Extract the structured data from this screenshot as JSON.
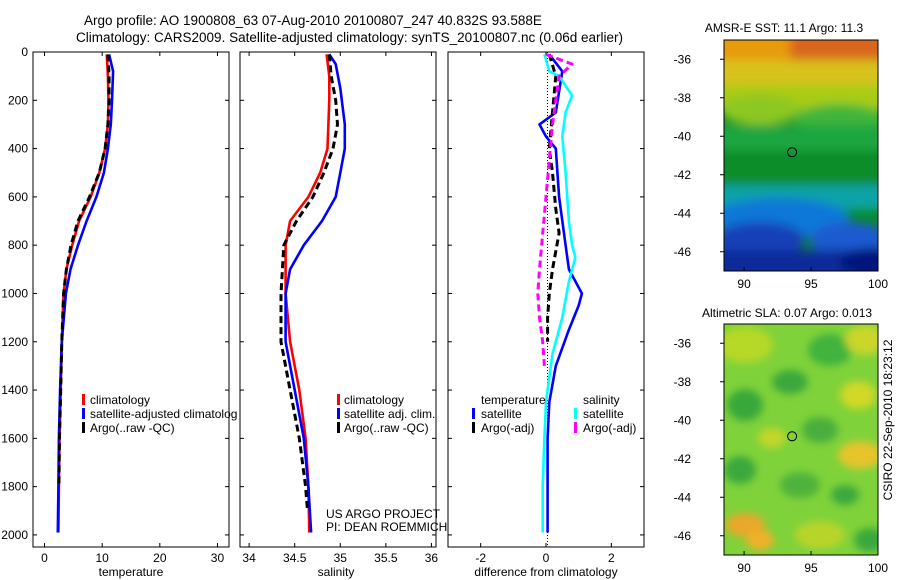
{
  "header": {
    "line1": "Argo profile: AO 1900808_63 07-Aug-2010 20100807_247 40.832S 93.588E",
    "line2": "Climatology: CARS2009. Satellite-adjusted climatology: synTS_20100807.nc (0.06d earlier)"
  },
  "colors": {
    "climatology": "#ff0000",
    "satellite": "#0000ff",
    "argo": "#000000",
    "cyan": "#00ffff",
    "magenta": "#ff00ff"
  },
  "chart_data": [
    {
      "type": "line",
      "xlabel": "temperature",
      "ylabel": "",
      "xlim": [
        -2,
        32
      ],
      "ylim": [
        2050,
        0
      ],
      "xticks": [
        0,
        10,
        20,
        30
      ],
      "yticks": [
        0,
        200,
        400,
        600,
        800,
        1000,
        1200,
        1400,
        1600,
        1800,
        2000
      ],
      "legend": [
        "climatology",
        "satellite-adjusted climatolog",
        "Argo(..raw -QC)"
      ],
      "legend_position": "lower-right",
      "series": [
        {
          "name": "climatology",
          "style": "solid",
          "color": "#ff0000",
          "x": [
            10.8,
            11.0,
            11.1,
            11.0,
            10.5,
            9.5,
            8.0,
            6.0,
            4.8,
            3.8,
            3.3,
            3.0,
            2.8,
            2.6,
            2.5,
            2.4
          ],
          "y": [
            10,
            100,
            200,
            300,
            400,
            500,
            600,
            700,
            800,
            900,
            1000,
            1200,
            1400,
            1600,
            1800,
            1990
          ]
        },
        {
          "name": "satellite-adjusted climatolog",
          "style": "solid",
          "color": "#0000ff",
          "x": [
            11.2,
            11.9,
            11.7,
            11.5,
            11.0,
            10.3,
            9.0,
            7.3,
            5.8,
            4.5,
            3.7,
            3.0,
            2.7,
            2.5,
            2.4,
            2.3
          ],
          "y": [
            10,
            80,
            200,
            300,
            400,
            500,
            600,
            700,
            800,
            900,
            1000,
            1200,
            1400,
            1600,
            1800,
            1990
          ]
        },
        {
          "name": "Argo(..raw -QC)",
          "style": "dash",
          "color": "#000000",
          "x": [
            11.0,
            11.2,
            11.2,
            11.0,
            10.5,
            9.5,
            7.8,
            5.8,
            4.6,
            3.8,
            3.3,
            3.0,
            2.8,
            2.6,
            2.5
          ],
          "y": [
            10,
            100,
            200,
            300,
            400,
            500,
            600,
            700,
            800,
            900,
            1000,
            1200,
            1400,
            1600,
            1800
          ]
        }
      ]
    },
    {
      "type": "line",
      "xlabel": "salinity",
      "ylabel": "",
      "xlim": [
        33.9,
        36.05
      ],
      "ylim": [
        2050,
        0
      ],
      "xticks": [
        34,
        34.5,
        35,
        35.5,
        36
      ],
      "yticks": [
        0,
        200,
        400,
        600,
        800,
        1000,
        1200,
        1400,
        1600,
        1800,
        2000
      ],
      "legend": [
        "climatology",
        "satellite adj. clim.",
        "Argo(..raw -QC)"
      ],
      "legend_position": "lower-right",
      "annotation": [
        "US ARGO PROJECT",
        "PI: DEAN ROEMMICH"
      ],
      "series": [
        {
          "name": "climatology",
          "style": "solid",
          "color": "#ff0000",
          "x": [
            34.85,
            34.88,
            34.88,
            34.87,
            34.86,
            34.78,
            34.65,
            34.45,
            34.4,
            34.4,
            34.45,
            34.55,
            34.62,
            34.65,
            34.66
          ],
          "y": [
            10,
            100,
            200,
            300,
            400,
            500,
            600,
            700,
            800,
            1000,
            1200,
            1400,
            1600,
            1800,
            1990
          ]
        },
        {
          "name": "satellite adj. clim.",
          "style": "solid",
          "color": "#0000ff",
          "x": [
            34.88,
            34.95,
            35.0,
            35.05,
            35.05,
            35.0,
            34.95,
            34.8,
            34.6,
            34.45,
            34.4,
            34.4,
            34.5,
            34.6,
            34.65,
            34.68
          ],
          "y": [
            10,
            50,
            150,
            300,
            400,
            500,
            600,
            700,
            800,
            900,
            1000,
            1200,
            1400,
            1600,
            1800,
            1990
          ]
        },
        {
          "name": "Argo(..raw -QC)",
          "style": "dash",
          "color": "#000000",
          "x": [
            34.88,
            34.9,
            34.95,
            34.97,
            34.92,
            34.82,
            34.7,
            34.52,
            34.38,
            34.35,
            34.35,
            34.45,
            34.55,
            34.62,
            34.64
          ],
          "y": [
            10,
            100,
            200,
            300,
            400,
            500,
            600,
            700,
            800,
            1000,
            1200,
            1400,
            1600,
            1800,
            1900
          ]
        }
      ]
    },
    {
      "type": "line",
      "xlabel": "difference from climatology",
      "ylabel": "",
      "xlim": [
        -3.0,
        3.0
      ],
      "ylim": [
        2050,
        0
      ],
      "xticks": [
        -2,
        0,
        2
      ],
      "yticks": [
        0,
        200,
        400,
        600,
        800,
        1000,
        1200,
        1400,
        1600,
        1800,
        2000
      ],
      "legend_groups": [
        {
          "title": "temperature",
          "items": [
            "satellite",
            "Argo(-adj)"
          ]
        },
        {
          "title": "salinity",
          "items": [
            "satellite",
            "Argo(-adj)"
          ]
        }
      ],
      "series": [
        {
          "name": "satellite",
          "group": "temperature",
          "style": "solid",
          "color": "#0000ff",
          "x": [
            0.1,
            0.5,
            0.3,
            -0.2,
            0.0,
            0.3,
            0.4,
            0.6,
            0.7,
            0.9,
            1.1,
            1.0,
            0.7,
            0.3,
            0.1,
            0.05,
            0.05,
            0.05
          ],
          "y": [
            10,
            80,
            250,
            300,
            350,
            400,
            600,
            800,
            900,
            950,
            1000,
            1050,
            1150,
            1300,
            1450,
            1600,
            1800,
            1990
          ]
        },
        {
          "name": "Argo(-adj)",
          "group": "temperature",
          "style": "dash",
          "color": "#000000",
          "x": [
            0.1,
            0.3,
            0.2,
            0.1,
            0.2,
            0.3,
            0.4,
            0.2,
            0.1,
            0.05,
            0.05
          ],
          "y": [
            10,
            100,
            250,
            400,
            500,
            650,
            750,
            900,
            1000,
            1100,
            1200
          ]
        },
        {
          "name": "satellite",
          "group": "salinity",
          "style": "solid",
          "color": "#00ffff",
          "x": [
            -0.05,
            0.1,
            0.4,
            0.8,
            0.6,
            0.5,
            0.6,
            0.7,
            0.8,
            0.9,
            0.7,
            0.5,
            0.2,
            0.0,
            -0.05,
            -0.1,
            -0.1
          ],
          "y": [
            10,
            80,
            100,
            180,
            250,
            350,
            500,
            700,
            800,
            850,
            950,
            1100,
            1250,
            1450,
            1600,
            1800,
            1990
          ]
        },
        {
          "name": "Argo(-adj)",
          "group": "salinity",
          "style": "dash",
          "color": "#ff00ff",
          "x": [
            0.0,
            0.8,
            0.4,
            0.2,
            0.0,
            -0.2,
            -0.25,
            -0.2,
            -0.1,
            -0.05
          ],
          "y": [
            10,
            50,
            100,
            300,
            600,
            900,
            1000,
            1100,
            1200,
            1300
          ]
        }
      ]
    },
    {
      "type": "heatmap",
      "title": "AMSR-E SST: 11.1 Argo: 11.3",
      "xlim": [
        88.5,
        100
      ],
      "ylim": [
        -47,
        -35
      ],
      "xticks": [
        90,
        95,
        100
      ],
      "yticks": [
        -36,
        -38,
        -40,
        -42,
        -44,
        -46
      ],
      "marker": {
        "lon": 93.588,
        "lat": -40.832
      },
      "colormap": "jet"
    },
    {
      "type": "heatmap",
      "title": "Altimetric SLA: 0.07 Argo: 0.013",
      "xlim": [
        88.5,
        100
      ],
      "ylim": [
        -47,
        -35
      ],
      "xticks": [
        90,
        95,
        100
      ],
      "yticks": [
        -36,
        -38,
        -40,
        -42,
        -44,
        -46
      ],
      "marker": {
        "lon": 93.588,
        "lat": -40.832
      },
      "colormap": "jet"
    }
  ],
  "footer": {
    "stamp": "CSIRO 22-Sep-2010 18:23:12"
  }
}
